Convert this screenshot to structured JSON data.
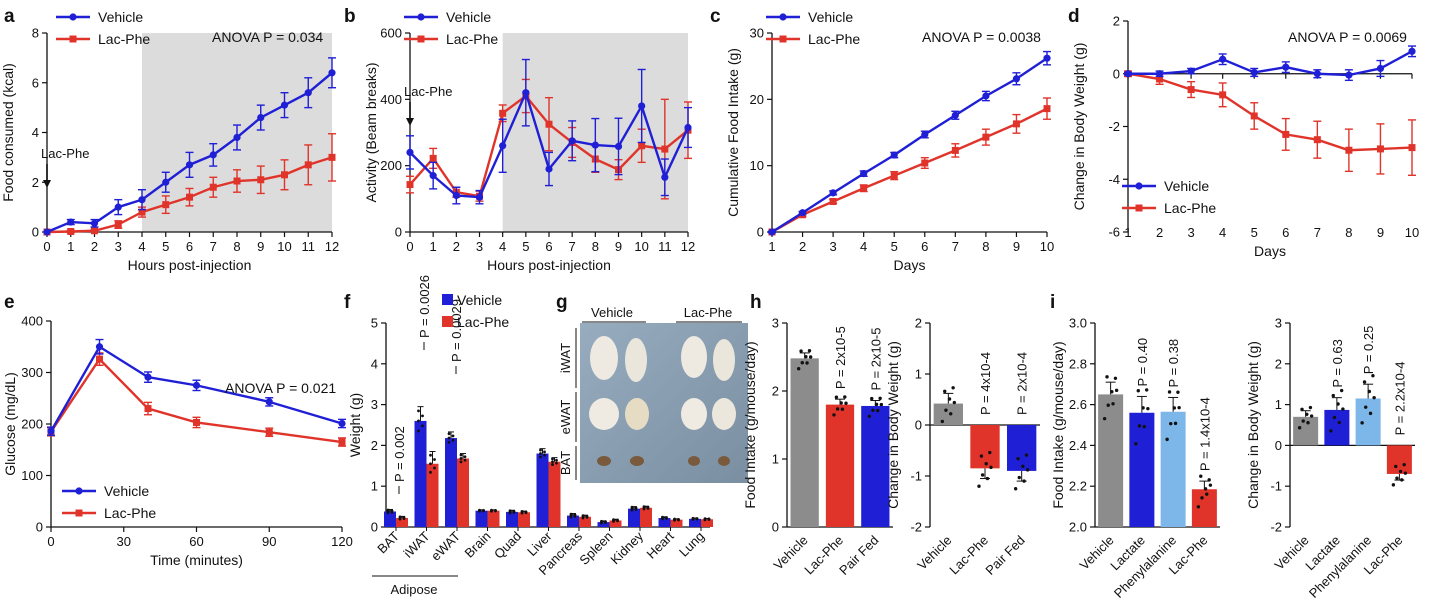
{
  "colors": {
    "vehicle": "#1f1fd6",
    "lacphe": "#e0342b",
    "shade": "#dcdcdc",
    "gray": "#8c8c8c",
    "lightblue": "#7db6e8"
  },
  "panel_labels": {
    "a": "a",
    "b": "b",
    "c": "c",
    "d": "d",
    "e": "e",
    "f": "f",
    "g": "g",
    "h": "h",
    "i": "i"
  },
  "chart_data": [
    {
      "id": "a",
      "type": "line",
      "xlabel": "Hours post-injection",
      "ylabel": "Food consumed (kcal)",
      "xlim": [
        0,
        12
      ],
      "ylim": [
        0,
        8
      ],
      "x": [
        0,
        1,
        2,
        3,
        4,
        5,
        6,
        7,
        8,
        9,
        10,
        11,
        12
      ],
      "xticks": [
        0,
        1,
        2,
        3,
        4,
        5,
        6,
        7,
        8,
        9,
        10,
        11,
        12
      ],
      "yticks": [
        0,
        2,
        4,
        6,
        8
      ],
      "shade_from": 4,
      "arrow_label": "Lac-Phe",
      "arrow_x": 0,
      "annotation": "ANOVA P = 0.034",
      "legend_position": "top-left",
      "series": [
        {
          "name": "Vehicle",
          "values": [
            0,
            0.4,
            0.35,
            1.0,
            1.3,
            2.0,
            2.7,
            3.1,
            3.8,
            4.6,
            5.1,
            5.6,
            6.4
          ],
          "err": [
            0,
            0.1,
            0.15,
            0.3,
            0.4,
            0.4,
            0.5,
            0.45,
            0.5,
            0.5,
            0.5,
            0.6,
            0.6
          ]
        },
        {
          "name": "Lac-Phe",
          "values": [
            0,
            0.02,
            0.05,
            0.3,
            0.8,
            1.1,
            1.4,
            1.8,
            2.05,
            2.1,
            2.3,
            2.7,
            3.0
          ],
          "err": [
            0,
            0.05,
            0.05,
            0.15,
            0.2,
            0.35,
            0.35,
            0.4,
            0.45,
            0.55,
            0.6,
            0.8,
            0.95
          ]
        }
      ]
    },
    {
      "id": "b",
      "type": "line",
      "xlabel": "Hours post-injection",
      "ylabel": "Activity (Beam breaks)",
      "xlim": [
        0,
        12
      ],
      "ylim": [
        0,
        600
      ],
      "x": [
        0,
        1,
        2,
        3,
        4,
        5,
        6,
        7,
        8,
        9,
        10,
        11,
        12
      ],
      "xticks": [
        0,
        1,
        2,
        3,
        4,
        5,
        6,
        7,
        8,
        9,
        10,
        11,
        12
      ],
      "yticks": [
        0,
        200,
        400,
        600
      ],
      "shade_from": 4,
      "arrow_label": "Lac-Phe",
      "arrow_x": 0,
      "legend_position": "top-left",
      "series": [
        {
          "name": "Vehicle",
          "values": [
            240,
            170,
            110,
            105,
            260,
            420,
            190,
            275,
            262,
            258,
            380,
            165,
            315
          ],
          "err": [
            50,
            40,
            25,
            20,
            80,
            100,
            50,
            60,
            80,
            85,
            110,
            55,
            60
          ]
        },
        {
          "name": "Lac-Phe",
          "values": [
            143,
            222,
            120,
            108,
            358,
            410,
            325,
            270,
            220,
            188,
            260,
            250,
            307
          ],
          "err": [
            25,
            30,
            15,
            15,
            25,
            50,
            80,
            45,
            40,
            30,
            50,
            150,
            85
          ]
        }
      ]
    },
    {
      "id": "c",
      "type": "line",
      "xlabel": "Days",
      "ylabel": "Cumulative Food Intake (g)",
      "xlim": [
        1,
        10
      ],
      "ylim": [
        0,
        30
      ],
      "x": [
        1,
        2,
        3,
        4,
        5,
        6,
        7,
        8,
        9,
        10
      ],
      "xticks": [
        1,
        2,
        3,
        4,
        5,
        6,
        7,
        8,
        9,
        10
      ],
      "yticks": [
        0,
        10,
        20,
        30
      ],
      "annotation": "ANOVA P = 0.0038",
      "legend_position": "top-left",
      "series": [
        {
          "name": "Vehicle",
          "values": [
            0,
            2.9,
            5.9,
            8.8,
            11.6,
            14.7,
            17.6,
            20.5,
            23.1,
            26.2
          ],
          "err": [
            0.1,
            0.2,
            0.3,
            0.4,
            0.4,
            0.5,
            0.6,
            0.7,
            0.9,
            1.0
          ]
        },
        {
          "name": "Lac-Phe",
          "values": [
            0,
            2.6,
            4.6,
            6.6,
            8.5,
            10.4,
            12.3,
            14.3,
            16.3,
            18.6
          ],
          "err": [
            0.1,
            0.2,
            0.3,
            0.5,
            0.6,
            0.8,
            1.0,
            1.2,
            1.4,
            1.6
          ]
        }
      ]
    },
    {
      "id": "d",
      "type": "line",
      "xlabel": "Days",
      "ylabel": "Change in Body Weight (g)",
      "xlim": [
        1,
        10
      ],
      "ylim": [
        -6,
        2
      ],
      "x": [
        1,
        2,
        3,
        4,
        5,
        6,
        7,
        8,
        9,
        10
      ],
      "xticks": [
        1,
        2,
        3,
        4,
        5,
        6,
        7,
        8,
        9,
        10
      ],
      "yticks": [
        -6,
        -4,
        -2,
        0,
        2
      ],
      "annotation": "ANOVA P = 0.0069",
      "legend_position": "bottom-left",
      "series": [
        {
          "name": "Vehicle",
          "values": [
            0,
            0.0,
            0.1,
            0.55,
            0.05,
            0.25,
            0.0,
            -0.05,
            0.2,
            0.85
          ],
          "err": [
            0.05,
            0.1,
            0.1,
            0.2,
            0.15,
            0.2,
            0.15,
            0.2,
            0.3,
            0.2
          ]
        },
        {
          "name": "Lac-Phe",
          "values": [
            0,
            -0.2,
            -0.6,
            -0.8,
            -1.6,
            -2.3,
            -2.5,
            -2.9,
            -2.85,
            -2.8
          ],
          "err": [
            0.1,
            0.2,
            0.3,
            0.45,
            0.5,
            0.6,
            0.7,
            0.8,
            0.95,
            1.05
          ]
        }
      ]
    },
    {
      "id": "e",
      "type": "line",
      "xlabel": "Time (minutes)",
      "ylabel": "Glucose (mg/dL)",
      "xlim": [
        0,
        120
      ],
      "ylim": [
        0,
        400
      ],
      "x": [
        0,
        20,
        40,
        60,
        90,
        120
      ],
      "xticks": [
        0,
        30,
        60,
        90,
        120
      ],
      "yticks": [
        0,
        100,
        200,
        300,
        400
      ],
      "annotation": "ANOVA P = 0.021",
      "legend_position": "bottom-left",
      "series": [
        {
          "name": "Vehicle",
          "values": [
            186,
            350,
            291,
            275,
            243,
            201
          ],
          "err": [
            8,
            14,
            10,
            10,
            8,
            8
          ]
        },
        {
          "name": "Lac-Phe",
          "values": [
            185,
            326,
            230,
            203,
            184,
            165
          ],
          "err": [
            8,
            12,
            12,
            10,
            8,
            8
          ]
        }
      ]
    },
    {
      "id": "f",
      "type": "bar",
      "ylabel": "Weight (g)",
      "ylim": [
        0,
        5
      ],
      "yticks": [
        0,
        1,
        2,
        3,
        4,
        5
      ],
      "categories": [
        "BAT",
        "iWAT",
        "eWAT",
        "Brain",
        "Quad",
        "Liver",
        "Pancreas",
        "Spleen",
        "Kidney",
        "Heart",
        "Lung"
      ],
      "group_label": "Adipose",
      "legend_position": "top-left",
      "series": [
        {
          "name": "Vehicle",
          "values": [
            0.38,
            2.6,
            2.18,
            0.4,
            0.37,
            1.8,
            0.28,
            0.12,
            0.45,
            0.22,
            0.2
          ],
          "err": [
            0.05,
            0.35,
            0.15,
            0.02,
            0.04,
            0.12,
            0.05,
            0.03,
            0.05,
            0.03,
            0.02
          ]
        },
        {
          "name": "Lac-Phe",
          "values": [
            0.22,
            1.55,
            1.68,
            0.4,
            0.36,
            1.6,
            0.25,
            0.16,
            0.47,
            0.18,
            0.19
          ],
          "err": [
            0.04,
            0.3,
            0.12,
            0.02,
            0.03,
            0.1,
            0.04,
            0.03,
            0.04,
            0.02,
            0.02
          ]
        }
      ],
      "pvalues": [
        {
          "cat": "BAT",
          "text": "P = 0.002"
        },
        {
          "cat": "iWAT",
          "text": "P = 0.0026"
        },
        {
          "cat": "eWAT",
          "text": "P = 0.0029"
        }
      ]
    },
    {
      "id": "h1",
      "type": "bar",
      "ylabel": "Food Intake (g/mouse/day)",
      "ylim": [
        0,
        3
      ],
      "yticks": [
        0,
        1,
        2,
        3
      ],
      "categories": [
        "Vehicle",
        "Lac-Phe",
        "Pair Fed"
      ],
      "values": [
        2.48,
        1.8,
        1.78
      ],
      "err": [
        0.08,
        0.08,
        0.08
      ],
      "colors": [
        "#8c8c8c",
        "#e0342b",
        "#1f1fd6"
      ],
      "labels": [
        "",
        "P = 2x10-5",
        "P = 2x10-5"
      ]
    },
    {
      "id": "h2",
      "type": "bar",
      "ylabel": "Change in Body Weight (g)",
      "ylim": [
        -2,
        2
      ],
      "yticks": [
        -2,
        -1,
        0,
        1,
        2
      ],
      "categories": [
        "Vehicle",
        "Lac-Phe",
        "Pair Fed"
      ],
      "values": [
        0.42,
        -0.85,
        -0.9
      ],
      "err": [
        0.2,
        0.2,
        0.2
      ],
      "colors": [
        "#8c8c8c",
        "#e0342b",
        "#1f1fd6"
      ],
      "labels": [
        "",
        "P = 4x10-4",
        "P = 2x10-4"
      ]
    },
    {
      "id": "i1",
      "type": "bar",
      "ylabel": "Food Intake (g/mouse/day)",
      "ylim": [
        2.0,
        3.0
      ],
      "yticks": [
        2.0,
        2.2,
        2.4,
        2.6,
        2.8,
        3.0
      ],
      "categories": [
        "Vehicle",
        "Lactate",
        "Phenylalanine",
        "Lac-Phe"
      ],
      "values": [
        2.65,
        2.56,
        2.565,
        2.185
      ],
      "err": [
        0.06,
        0.08,
        0.07,
        0.04
      ],
      "colors": [
        "#8c8c8c",
        "#1f1fd6",
        "#7db6e8",
        "#e0342b"
      ],
      "labels": [
        "",
        "P = 0.40",
        "P = 0.38",
        "P = 1.4x10-4"
      ]
    },
    {
      "id": "i2",
      "type": "bar",
      "ylabel": "Change in Body Weight (g)",
      "ylim": [
        -2,
        3
      ],
      "yticks": [
        -2,
        -1,
        0,
        1,
        2,
        3
      ],
      "categories": [
        "Vehicle",
        "Lactate",
        "Phenylalanine",
        "Lac-Phe"
      ],
      "values": [
        0.7,
        0.87,
        1.15,
        -0.7
      ],
      "err": [
        0.15,
        0.3,
        0.35,
        0.15
      ],
      "colors": [
        "#8c8c8c",
        "#1f1fd6",
        "#7db6e8",
        "#e0342b"
      ],
      "labels": [
        "",
        "P = 0.63",
        "P = 0.25",
        "P = 2.2x10-4"
      ]
    }
  ],
  "photo": {
    "headers": [
      "Vehicle",
      "Lac-Phe"
    ],
    "rows": [
      "iWAT",
      "eWAT",
      "BAT"
    ]
  }
}
